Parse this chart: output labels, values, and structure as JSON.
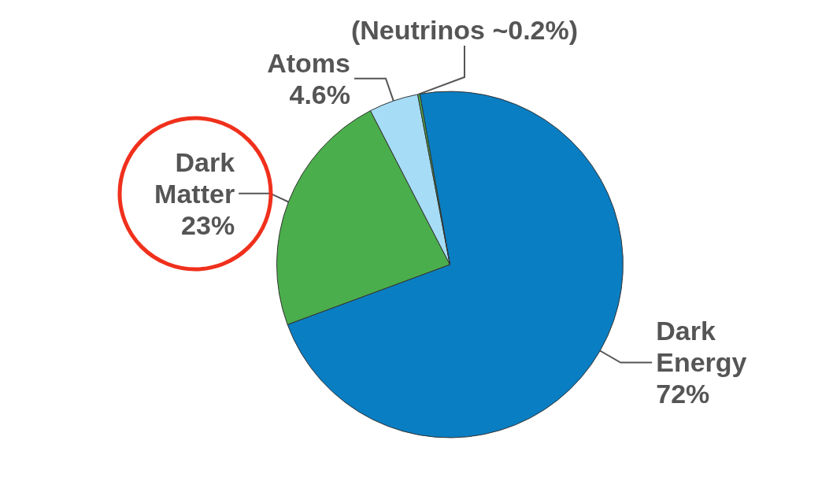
{
  "chart_data": {
    "type": "pie",
    "categories": [
      "Dark Energy",
      "Dark Matter",
      "Atoms",
      null
    ],
    "values": [
      72,
      23,
      4.6,
      0.2
    ],
    "value_labels": [
      "72%",
      "23%",
      "4.6%",
      "(Neutrinos ~0.2%)"
    ],
    "colors": [
      "#0a7ec2",
      "#4bae4c",
      "#a6dcf6",
      "#4bae4c"
    ]
  }
}
